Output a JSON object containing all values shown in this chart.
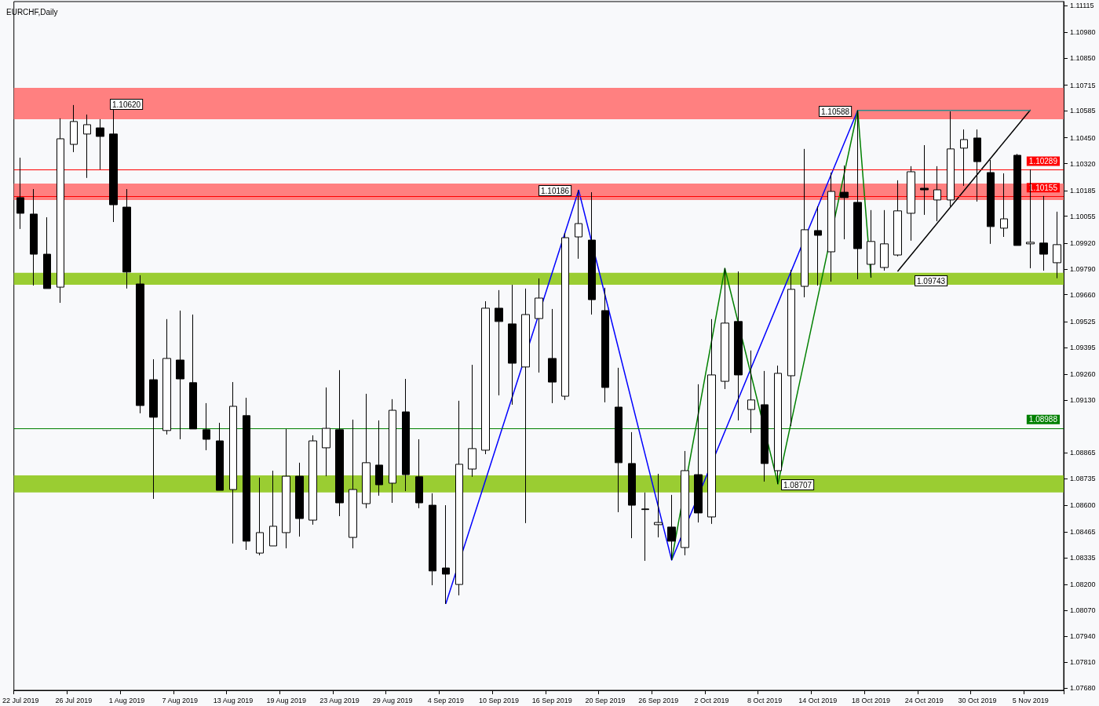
{
  "chart_data": {
    "type": "candlestick",
    "title": "EURCHF,Daily",
    "categories": [
      "22 Jul 2019",
      null,
      null,
      null,
      "26 Jul 2019",
      null,
      null,
      null,
      "1 Aug 2019",
      null,
      null,
      null,
      "7 Aug 2019",
      null,
      null,
      null,
      "13 Aug 2019",
      null,
      null,
      null,
      "19 Aug 2019",
      null,
      null,
      null,
      "23 Aug 2019",
      null,
      null,
      null,
      "29 Aug 2019",
      null,
      null,
      null,
      "4 Sep 2019",
      null,
      null,
      null,
      "10 Sep 2019",
      null,
      null,
      null,
      "16 Sep 2019",
      null,
      null,
      null,
      "20 Sep 2019",
      null,
      null,
      null,
      "26 Sep 2019",
      null,
      null,
      null,
      "2 Oct 2019",
      null,
      null,
      null,
      "8 Oct 2019",
      null,
      null,
      null,
      "14 Oct 2019",
      null,
      null,
      null,
      "18 Oct 2019",
      null,
      null,
      null,
      "24 Oct 2019",
      null,
      null,
      null,
      "30 Oct 2019",
      null,
      null,
      null,
      "5 Nov 2019",
      null,
      null
    ],
    "ohlc": [
      [
        1.10149,
        1.1035,
        1.09991,
        1.1007
      ],
      [
        1.10066,
        1.10192,
        1.09706,
        1.09864
      ],
      [
        1.09864,
        1.1005,
        1.09691,
        1.09691
      ],
      [
        1.09698,
        1.10548,
        1.09619,
        1.10445
      ],
      [
        1.10417,
        1.10615,
        1.10378,
        1.10532
      ],
      [
        1.10469,
        1.10567,
        1.10248,
        1.10516
      ],
      [
        1.105,
        1.10544,
        1.10291,
        1.10457
      ],
      [
        1.10469,
        1.1062,
        1.10026,
        1.10113
      ],
      [
        1.10101,
        1.10192,
        1.09691,
        1.09774
      ],
      [
        1.09714,
        1.09758,
        1.09063,
        1.09102
      ],
      [
        1.09232,
        1.09335,
        1.08632,
        1.09043
      ],
      [
        1.08976,
        1.09537,
        1.08956,
        1.09339
      ],
      [
        1.09331,
        1.0958,
        1.08932,
        1.09236
      ],
      [
        1.09217,
        1.0956,
        1.08984,
        1.08984
      ],
      [
        1.0898,
        1.09114,
        1.08877,
        1.08932
      ],
      [
        1.08924,
        1.09015,
        1.08675,
        1.08675
      ],
      [
        1.08679,
        1.0922,
        1.08407,
        1.09098
      ],
      [
        1.09051,
        1.09141,
        1.08375,
        1.08419
      ],
      [
        1.08359,
        1.08739,
        1.08348,
        1.08462
      ],
      [
        1.08395,
        1.08774,
        1.08395,
        1.08494
      ],
      [
        1.08462,
        1.08984,
        1.08383,
        1.08746
      ],
      [
        1.08746,
        1.08814,
        1.08442,
        1.08533
      ],
      [
        1.08525,
        1.08952,
        1.08502,
        1.08924
      ],
      [
        1.08889,
        1.09193,
        1.08746,
        1.08987
      ],
      [
        1.0898,
        1.0928,
        1.08545,
        1.08612
      ],
      [
        1.08438,
        1.09031,
        1.08383,
        1.08679
      ],
      [
        1.08608,
        1.09161,
        1.08585,
        1.08814
      ],
      [
        1.08802,
        1.09027,
        1.08648,
        1.08703
      ],
      [
        1.08711,
        1.09134,
        1.08612,
        1.09078
      ],
      [
        1.0907,
        1.09236,
        1.08671,
        1.08754
      ],
      [
        1.08743,
        1.08932,
        1.08585,
        1.08612
      ],
      [
        1.086,
        1.0866,
        1.08197,
        1.08269
      ],
      [
        1.08284,
        1.086,
        1.08103,
        1.08253
      ],
      [
        1.08201,
        1.09126,
        1.08146,
        1.08806
      ],
      [
        1.08782,
        1.09307,
        1.08743,
        1.08885
      ],
      [
        1.08877,
        1.09627,
        1.08857,
        1.09592
      ],
      [
        1.09592,
        1.09683,
        1.09153,
        1.09525
      ],
      [
        1.09513,
        1.0971,
        1.09106,
        1.09315
      ],
      [
        1.09296,
        1.09691,
        1.0851,
        1.0956
      ],
      [
        1.0954,
        1.09742,
        1.09268,
        1.09643
      ],
      [
        1.09339,
        1.09588,
        1.09114,
        1.0922
      ],
      [
        1.09149,
        1.09971,
        1.0913,
        1.09947
      ],
      [
        1.09951,
        1.10186,
        1.09841,
        1.10018
      ],
      [
        1.09935,
        1.10176,
        1.0956,
        1.09635
      ],
      [
        1.0958,
        1.09695,
        1.09118,
        1.09193
      ],
      [
        1.09094,
        1.09292,
        1.08565,
        1.08814
      ],
      [
        1.0881,
        1.08968,
        1.08434,
        1.086
      ],
      [
        1.08581,
        1.08664,
        1.0832,
        1.08578
      ],
      [
        1.08502,
        1.08758,
        1.08438,
        1.08513
      ],
      [
        1.0849,
        1.08652,
        1.08324,
        1.08419
      ],
      [
        1.08387,
        1.08873,
        1.08348,
        1.08774
      ],
      [
        1.08754,
        1.09209,
        1.08513,
        1.08561
      ],
      [
        1.08541,
        1.09537,
        1.08506,
        1.09256
      ],
      [
        1.09224,
        1.09793,
        1.09185,
        1.09517
      ],
      [
        1.09525,
        1.09777,
        1.09027,
        1.09256
      ],
      [
        1.09082,
        1.09379,
        1.08964,
        1.0913
      ],
      [
        1.09106,
        1.09276,
        1.08719,
        1.0881
      ],
      [
        1.08774,
        1.09303,
        1.08707,
        1.09264
      ],
      [
        1.09252,
        1.09785,
        1.08999,
        1.09687
      ],
      [
        1.09702,
        1.10394,
        1.09647,
        1.09987
      ],
      [
        1.09983,
        1.10105,
        1.09706,
        1.09959
      ],
      [
        1.09876,
        1.10275,
        1.09726,
        1.1018
      ],
      [
        1.10176,
        1.10311,
        1.09939,
        1.10149
      ],
      [
        1.10125,
        1.10588,
        1.09738,
        1.09892
      ],
      [
        1.09813,
        1.10086,
        1.09746,
        1.09928
      ],
      [
        1.09797,
        1.10086,
        1.09781,
        1.09916
      ],
      [
        1.0986,
        1.10236,
        1.09853,
        1.10082
      ],
      [
        1.1007,
        1.10307,
        1.09932,
        1.10279
      ],
      [
        1.10196,
        1.10413,
        1.10062,
        1.10188
      ],
      [
        1.10137,
        1.10307,
        1.1003,
        1.10188
      ],
      [
        1.10137,
        1.10583,
        1.10105,
        1.10394
      ],
      [
        1.10398,
        1.10492,
        1.10208,
        1.10441
      ],
      [
        1.10449,
        1.10492,
        1.10129,
        1.1033
      ],
      [
        1.10275,
        1.10338,
        1.09916,
        1.10003
      ],
      [
        1.09995,
        1.10271,
        1.09951,
        1.10042
      ],
      [
        1.10362,
        1.10369,
        1.09908,
        1.09908
      ],
      [
        1.09916,
        1.10291,
        1.09793,
        1.09924
      ],
      [
        1.0992,
        1.10157,
        1.09781,
        1.09864
      ],
      [
        1.09821,
        1.10078,
        1.09743,
        1.09912
      ]
    ],
    "series": [
      {
        "type": "line",
        "color": "#0000ff",
        "values": [
          null,
          null,
          null,
          null,
          null,
          null,
          null,
          null,
          null,
          null,
          null,
          null,
          null,
          null,
          null,
          null,
          null,
          null,
          null,
          null,
          null,
          null,
          null,
          null,
          null,
          null,
          null,
          null,
          null,
          null,
          null,
          null,
          1.08103,
          null,
          null,
          null,
          null,
          null,
          null,
          null,
          null,
          null,
          1.10186,
          null,
          null,
          null,
          null,
          null,
          null,
          1.08324,
          null,
          null,
          null,
          null,
          null,
          null,
          null,
          null,
          null,
          null,
          null,
          null,
          null,
          1.10588,
          null,
          null,
          null,
          null,
          null,
          null,
          null,
          null,
          null,
          null,
          null,
          null,
          null,
          null,
          null
        ]
      },
      {
        "type": "line",
        "color": "#008000",
        "values": [
          null,
          null,
          null,
          null,
          null,
          null,
          null,
          null,
          null,
          null,
          null,
          null,
          null,
          null,
          null,
          null,
          null,
          null,
          null,
          null,
          null,
          null,
          null,
          null,
          null,
          null,
          null,
          null,
          null,
          null,
          null,
          null,
          null,
          null,
          null,
          null,
          null,
          null,
          null,
          null,
          null,
          null,
          null,
          null,
          null,
          null,
          null,
          null,
          null,
          1.08324,
          null,
          null,
          null,
          1.09793,
          null,
          null,
          null,
          1.08707,
          null,
          null,
          null,
          null,
          null,
          1.10588,
          1.09746,
          null,
          null,
          null,
          null,
          null,
          null,
          null,
          null,
          null,
          null,
          null,
          null,
          null,
          null
        ]
      },
      {
        "type": "line",
        "color": "#000000",
        "values": [
          null,
          null,
          null,
          null,
          null,
          null,
          null,
          null,
          null,
          null,
          null,
          null,
          null,
          null,
          null,
          null,
          null,
          null,
          null,
          null,
          null,
          null,
          null,
          null,
          null,
          null,
          null,
          null,
          null,
          null,
          null,
          null,
          null,
          null,
          null,
          null,
          null,
          null,
          null,
          null,
          null,
          null,
          null,
          null,
          null,
          null,
          null,
          null,
          null,
          null,
          null,
          null,
          null,
          null,
          null,
          null,
          null,
          null,
          null,
          null,
          null,
          null,
          null,
          null,
          null,
          null,
          1.09777,
          null,
          null,
          null,
          null,
          null,
          null,
          null,
          null,
          null,
          1.10591,
          null,
          null
        ]
      },
      {
        "type": "line",
        "color": "#2e8b8b",
        "values": [
          null,
          null,
          null,
          null,
          null,
          null,
          null,
          null,
          null,
          null,
          null,
          null,
          null,
          null,
          null,
          null,
          null,
          null,
          null,
          null,
          null,
          null,
          null,
          null,
          null,
          null,
          null,
          null,
          null,
          null,
          null,
          null,
          null,
          null,
          null,
          null,
          null,
          null,
          null,
          null,
          null,
          null,
          null,
          null,
          null,
          null,
          null,
          null,
          null,
          null,
          null,
          null,
          null,
          null,
          null,
          null,
          null,
          null,
          null,
          null,
          null,
          null,
          null,
          1.10588,
          null,
          null,
          null,
          null,
          null,
          null,
          null,
          null,
          null,
          null,
          null,
          null,
          1.10588,
          null,
          null
        ]
      }
    ],
    "ylim": [
      1.07668,
      1.11136
    ],
    "yticks": [
      1.11115,
      {
        "value": 1.1098,
        "label": "1.10980"
      },
      {
        "value": 1.1085,
        "label": "1.10850"
      },
      1.10715,
      1.10585,
      {
        "value": 1.1045,
        "label": "1.10450"
      },
      {
        "value": 1.1032,
        "label": "1.10320"
      },
      1.10185,
      1.10055,
      {
        "value": 1.0992,
        "label": "1.09920"
      },
      {
        "value": 1.0979,
        "label": "1.09790"
      },
      {
        "value": 1.0966,
        "label": "1.09660"
      },
      1.09525,
      1.09395,
      {
        "value": 1.0926,
        "label": "1.09260"
      },
      {
        "value": 1.0913,
        "label": "1.09130"
      },
      1.08865,
      1.08735,
      {
        "value": 1.086,
        "label": "1.08600"
      },
      1.08465,
      1.08335,
      {
        "value": 1.082,
        "label": "1.08200"
      },
      {
        "value": 1.0807,
        "label": "1.08070"
      },
      {
        "value": 1.0794,
        "label": "1.07940"
      },
      {
        "value": 1.0781,
        "label": "1.07810"
      },
      {
        "value": 1.0768,
        "label": "1.07680"
      }
    ],
    "ref_lines": [
      {
        "axis": "y",
        "value": 1.10289,
        "label": "1.10289",
        "color": "#ff0000"
      },
      {
        "axis": "y",
        "value": 1.10155,
        "label": "1.10155",
        "color": "#ff0000"
      },
      {
        "axis": "y",
        "value": 1.08988,
        "label": "1.08988",
        "color": "#008000"
      }
    ],
    "bands": [
      {
        "axis": "y",
        "from": 1.10544,
        "to": 1.10702,
        "color": "#ff8080"
      },
      {
        "axis": "y",
        "from": 1.10137,
        "to": 1.1022,
        "color": "#ff8080"
      },
      {
        "axis": "y",
        "from": 1.0971,
        "to": 1.0977,
        "color": "#9acd32"
      },
      {
        "axis": "y",
        "from": 1.08664,
        "to": 1.0875,
        "color": "#9acd32"
      }
    ],
    "annotations": [
      "1.10620",
      "1.10186",
      "1.10588",
      "1.09743",
      "1.08707"
    ],
    "grid": false
  }
}
